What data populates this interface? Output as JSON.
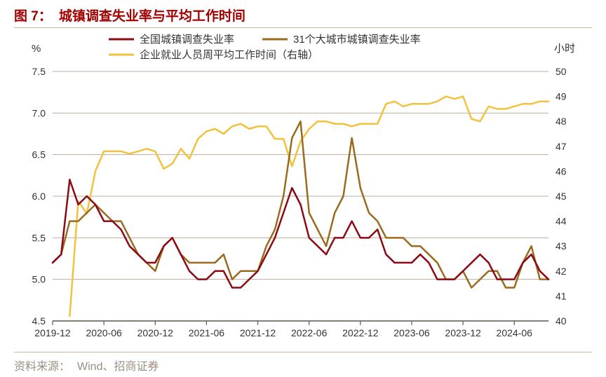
{
  "title_prefix": "图 7：",
  "title_text": "城镇调查失业率与平均工作时间",
  "source_label": "资料来源：",
  "source_text": "Wind、招商证券",
  "left_axis_label": "%",
  "right_axis_label": "小时",
  "chart": {
    "type": "line",
    "background_color": "#ffffff",
    "grid_color": "#bcaea0",
    "axis_color": "#615649",
    "tick_fontsize": 14,
    "legend_fontsize": 15,
    "line_width": 2.5,
    "x_categories": [
      "2019-12",
      "2020-01",
      "2020-02",
      "2020-03",
      "2020-04",
      "2020-05",
      "2020-06",
      "2020-07",
      "2020-08",
      "2020-09",
      "2020-10",
      "2020-11",
      "2020-12",
      "2021-01",
      "2021-02",
      "2021-03",
      "2021-04",
      "2021-05",
      "2021-06",
      "2021-07",
      "2021-08",
      "2021-09",
      "2021-10",
      "2021-11",
      "2021-12",
      "2022-01",
      "2022-02",
      "2022-03",
      "2022-04",
      "2022-05",
      "2022-06",
      "2022-07",
      "2022-08",
      "2022-09",
      "2022-10",
      "2022-11",
      "2022-12",
      "2023-01",
      "2023-02",
      "2023-03",
      "2023-04",
      "2023-05",
      "2023-06",
      "2023-07",
      "2023-08",
      "2023-09",
      "2023-10",
      "2023-11",
      "2023-12",
      "2024-01",
      "2024-02",
      "2024-03",
      "2024-04",
      "2024-05",
      "2024-06",
      "2024-07",
      "2024-08",
      "2024-09",
      "2024-10"
    ],
    "x_tick_labels": [
      "2019-12",
      "2020-06",
      "2020-12",
      "2021-06",
      "2021-12",
      "2022-06",
      "2022-12",
      "2023-06",
      "2023-12",
      "2024-06"
    ],
    "x_tick_indices": [
      0,
      6,
      12,
      18,
      24,
      30,
      36,
      42,
      48,
      54
    ],
    "y_left": {
      "min": 4.5,
      "max": 7.5,
      "step": 0.5
    },
    "y_right": {
      "min": 40,
      "max": 50,
      "step": 1
    },
    "legend_items": [
      {
        "key": "national",
        "label": "全国城镇调查失业率",
        "color": "#8c0a14",
        "axis": "left"
      },
      {
        "key": "big31",
        "label": "31个大城市城镇调查失业率",
        "color": "#9a6b1f",
        "axis": "left"
      },
      {
        "key": "hours",
        "label": "企业就业人员周平均工作时间（右轴）",
        "color": "#f2c23e",
        "axis": "right"
      }
    ],
    "series": {
      "national": [
        5.2,
        5.3,
        6.2,
        5.9,
        6.0,
        5.9,
        5.7,
        5.7,
        5.6,
        5.4,
        5.3,
        5.2,
        5.2,
        5.4,
        5.5,
        5.3,
        5.1,
        5.0,
        5.0,
        5.1,
        5.1,
        4.9,
        4.9,
        5.0,
        5.1,
        5.3,
        5.5,
        5.8,
        6.1,
        5.9,
        5.5,
        5.4,
        5.3,
        5.5,
        5.5,
        5.7,
        5.5,
        5.5,
        5.6,
        5.3,
        5.2,
        5.2,
        5.2,
        5.3,
        5.2,
        5.0,
        5.0,
        5.0,
        5.1,
        5.2,
        5.3,
        5.2,
        5.0,
        5.0,
        5.0,
        5.2,
        5.3,
        5.1,
        5.0
      ],
      "big31": [
        5.2,
        5.3,
        5.7,
        5.7,
        5.8,
        5.9,
        5.8,
        5.7,
        5.7,
        5.5,
        5.3,
        5.2,
        5.1,
        5.4,
        5.5,
        5.3,
        5.2,
        5.2,
        5.2,
        5.2,
        5.3,
        5.0,
        5.1,
        5.1,
        5.1,
        5.4,
        5.6,
        6.0,
        6.7,
        6.9,
        5.8,
        5.6,
        5.4,
        5.8,
        6.0,
        6.7,
        6.1,
        5.8,
        5.7,
        5.5,
        5.5,
        5.5,
        5.4,
        5.4,
        5.3,
        5.2,
        5.0,
        5.0,
        5.1,
        4.9,
        5.0,
        5.1,
        5.1,
        4.9,
        4.9,
        5.2,
        5.4,
        5.0,
        5.0
      ],
      "hours": [
        null,
        null,
        40.2,
        44.8,
        44.3,
        46.0,
        46.8,
        46.8,
        46.8,
        46.7,
        46.8,
        46.9,
        46.8,
        46.1,
        46.3,
        46.9,
        46.5,
        47.3,
        47.6,
        47.7,
        47.5,
        47.8,
        47.9,
        47.7,
        47.8,
        47.8,
        47.3,
        47.3,
        46.2,
        47.2,
        47.7,
        48.0,
        48.0,
        47.9,
        47.9,
        47.8,
        47.9,
        47.9,
        47.9,
        48.7,
        48.8,
        48.6,
        48.7,
        48.7,
        48.7,
        48.8,
        49.0,
        48.9,
        49.0,
        48.1,
        48.0,
        48.6,
        48.5,
        48.5,
        48.6,
        48.7,
        48.7,
        48.8,
        48.8
      ]
    }
  }
}
